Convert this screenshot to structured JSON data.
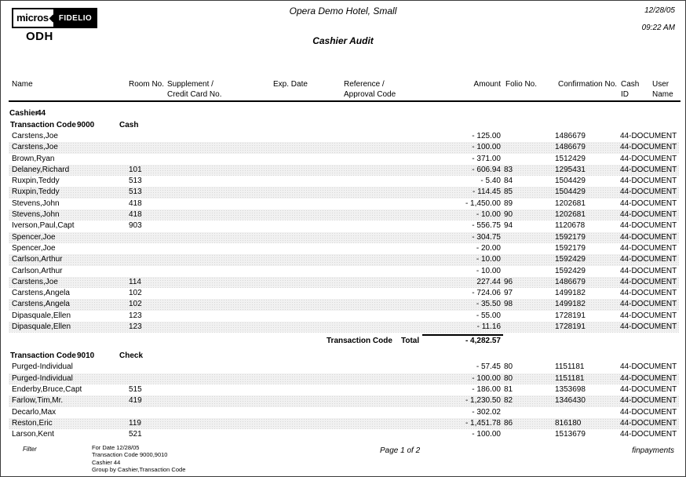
{
  "header": {
    "logo": {
      "micros": "micros",
      "fidelio": "FIDELIO"
    },
    "property_code": "ODH",
    "title": "Opera Demo Hotel, Small",
    "subtitle": "Cashier Audit",
    "date": "12/28/05",
    "time": "09:22 AM"
  },
  "table": {
    "columns": [
      {
        "id": "name",
        "label": "Name"
      },
      {
        "id": "room",
        "label": "Room No."
      },
      {
        "id": "supplement",
        "label": "Supplement /\nCredit Card No."
      },
      {
        "id": "expdate",
        "label": "Exp. Date"
      },
      {
        "id": "reference",
        "label": "Reference /\nApproval Code"
      },
      {
        "id": "amount",
        "label": "Amount"
      },
      {
        "id": "folio",
        "label": "Folio No."
      },
      {
        "id": "confirmation",
        "label": "Confirmation No."
      },
      {
        "id": "cashid",
        "label": "Cash\nID"
      },
      {
        "id": "username",
        "label": "User\nName"
      }
    ],
    "cashier": {
      "label": "Cashier",
      "number": "44"
    },
    "sections": [
      {
        "code_label": "Transaction Code",
        "code": "9000",
        "name": "Cash",
        "rows": [
          {
            "name": "Carstens,Joe",
            "room": "",
            "amount": "- 125.00",
            "folio": "",
            "conf": "1486679",
            "user": "44-DOCUMENT"
          },
          {
            "name": "Carstens,Joe",
            "room": "",
            "amount": "- 100.00",
            "folio": "",
            "conf": "1486679",
            "user": "44-DOCUMENT"
          },
          {
            "name": "Brown,Ryan",
            "room": "",
            "amount": "- 371.00",
            "folio": "",
            "conf": "1512429",
            "user": "44-DOCUMENT"
          },
          {
            "name": "Delaney,Richard",
            "room": "101",
            "amount": "- 606.94",
            "folio": "83",
            "conf": "1295431",
            "user": "44-DOCUMENT"
          },
          {
            "name": "Ruxpin,Teddy",
            "room": "513",
            "amount": "- 5.40",
            "folio": "84",
            "conf": "1504429",
            "user": "44-DOCUMENT"
          },
          {
            "name": "Ruxpin,Teddy",
            "room": "513",
            "amount": "- 114.45",
            "folio": "85",
            "conf": "1504429",
            "user": "44-DOCUMENT"
          },
          {
            "name": "Stevens,John",
            "room": "418",
            "amount": "- 1,450.00",
            "folio": "89",
            "conf": "1202681",
            "user": "44-DOCUMENT"
          },
          {
            "name": "Stevens,John",
            "room": "418",
            "amount": "- 10.00",
            "folio": "90",
            "conf": "1202681",
            "user": "44-DOCUMENT"
          },
          {
            "name": "Iverson,Paul,Capt",
            "room": "903",
            "amount": "- 556.75",
            "folio": "94",
            "conf": "1120678",
            "user": "44-DOCUMENT"
          },
          {
            "name": "Spencer,Joe",
            "room": "",
            "amount": "- 304.75",
            "folio": "",
            "conf": "1592179",
            "user": "44-DOCUMENT"
          },
          {
            "name": "Spencer,Joe",
            "room": "",
            "amount": "- 20.00",
            "folio": "",
            "conf": "1592179",
            "user": "44-DOCUMENT"
          },
          {
            "name": "Carlson,Arthur",
            "room": "",
            "amount": "- 10.00",
            "folio": "",
            "conf": "1592429",
            "user": "44-DOCUMENT"
          },
          {
            "name": "Carlson,Arthur",
            "room": "",
            "amount": "- 10.00",
            "folio": "",
            "conf": "1592429",
            "user": "44-DOCUMENT"
          },
          {
            "name": "Carstens,Joe",
            "room": "114",
            "amount": "227.44",
            "folio": "96",
            "conf": "1486679",
            "user": "44-DOCUMENT"
          },
          {
            "name": "Carstens,Angela",
            "room": "102",
            "amount": "- 724.06",
            "folio": "97",
            "conf": "1499182",
            "user": "44-DOCUMENT"
          },
          {
            "name": "Carstens,Angela",
            "room": "102",
            "amount": "- 35.50",
            "folio": "98",
            "conf": "1499182",
            "user": "44-DOCUMENT"
          },
          {
            "name": "Dipasquale,Ellen",
            "room": "123",
            "amount": "- 55.00",
            "folio": "",
            "conf": "1728191",
            "user": "44-DOCUMENT"
          },
          {
            "name": "Dipasquale,Ellen",
            "room": "123",
            "amount": "- 11.16",
            "folio": "",
            "conf": "1728191",
            "user": "44-DOCUMENT"
          }
        ],
        "total": {
          "label": "Transaction Code",
          "word": "Total",
          "amount": "- 4,282.57"
        }
      },
      {
        "code_label": "Transaction Code",
        "code": "9010",
        "name": "Check",
        "rows": [
          {
            "name": "Purged-Individual",
            "room": "",
            "amount": "- 57.45",
            "folio": "80",
            "conf": "1151181",
            "user": "44-DOCUMENT"
          },
          {
            "name": "Purged-Individual",
            "room": "",
            "amount": "- 100.00",
            "folio": "80",
            "conf": "1151181",
            "user": "44-DOCUMENT"
          },
          {
            "name": "Enderby,Bruce,Capt",
            "room": "515",
            "amount": "- 186.00",
            "folio": "81",
            "conf": "1353698",
            "user": "44-DOCUMENT"
          },
          {
            "name": "Farlow,Tim,Mr.",
            "room": "419",
            "amount": "- 1,230.50",
            "folio": "82",
            "conf": "1346430",
            "user": "44-DOCUMENT"
          },
          {
            "name": "Decarlo,Max",
            "room": "",
            "amount": "- 302.02",
            "folio": "",
            "conf": "",
            "user": "44-DOCUMENT"
          },
          {
            "name": "Reston,Eric",
            "room": "119",
            "amount": "- 1,451.78",
            "folio": "86",
            "conf": "816180",
            "user": "44-DOCUMENT"
          },
          {
            "name": "Larson,Kent",
            "room": "521",
            "amount": "- 100.00",
            "folio": "",
            "conf": "1513679",
            "user": "44-DOCUMENT"
          }
        ],
        "total": null
      }
    ]
  },
  "footer": {
    "filter_label": "Filter",
    "filter_lines": [
      "For Date 12/28/05",
      "Transaction Code 9000,9010",
      "Cashier 44",
      "Group by Cashier,Transaction Code"
    ],
    "page_label": "Page 1 of 2",
    "report_name": "finpayments"
  }
}
